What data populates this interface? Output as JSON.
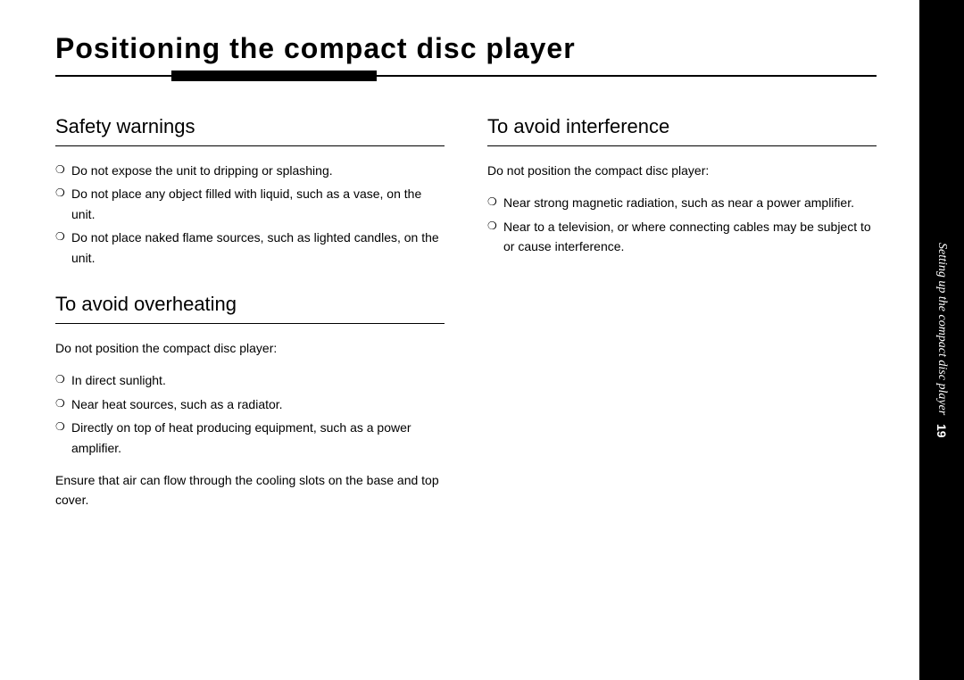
{
  "page": {
    "title": "Positioning the compact disc player",
    "side_tab": "Setting up the compact disc player",
    "page_number": "19"
  },
  "colors": {
    "background": "#ffffff",
    "text": "#000000",
    "tab_bg": "#000000",
    "tab_text": "#ffffff",
    "rule": "#000000"
  },
  "typography": {
    "title_fontsize": 32,
    "title_weight": "bold",
    "heading_fontsize": 22,
    "body_fontsize": 14,
    "line_height": 1.6,
    "sidebar_fontsize": 14
  },
  "left_column": {
    "sections": [
      {
        "heading": "Safety warnings",
        "intro": "",
        "bullets": [
          "Do not expose the unit to dripping or splashing.",
          "Do not place any object filled with liquid, such as a vase, on the unit.",
          "Do not place naked flame sources, such as lighted candles, on the unit."
        ],
        "outro": ""
      },
      {
        "heading": "To avoid overheating",
        "intro": "Do not position the compact disc player:",
        "bullets": [
          "In direct sunlight.",
          "Near heat sources, such as a radiator.",
          "Directly on top of heat producing equipment, such as a power amplifier."
        ],
        "outro": "Ensure that air can flow through the cooling slots on the base and top cover."
      }
    ]
  },
  "right_column": {
    "sections": [
      {
        "heading": "To avoid interference",
        "intro": "Do not position the compact disc player:",
        "bullets": [
          "Near strong magnetic radiation, such as near a power amplifier.",
          "Near to a television, or where connecting cables may be subject to or cause interference."
        ],
        "outro": ""
      }
    ]
  }
}
